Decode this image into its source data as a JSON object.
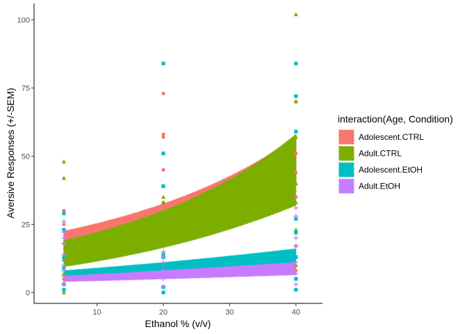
{
  "chart_data": {
    "type": "scatter",
    "xlabel": "Ethanol % (v/v)",
    "ylabel": "Aversive Responses (+/-SEM)",
    "xlim": [
      0.5,
      44
    ],
    "ylim": [
      -4,
      106
    ],
    "x_ticks": [
      10,
      20,
      30,
      40
    ],
    "y_ticks": [
      0,
      25,
      50,
      75,
      100
    ],
    "grid": false,
    "legend": {
      "title": "interaction(Age, Condition)",
      "position": "right",
      "entries": [
        "Adolescent.CTRL",
        "Adult.CTRL",
        "Adolescent.EtOH",
        "Adult.EtOH"
      ]
    },
    "series": [
      {
        "name": "Adolescent.CTRL",
        "color": "#F8766D",
        "marker": "circle",
        "band": [
          [
            5,
            15.5,
            22.5
          ],
          [
            20,
            24.5,
            32.5
          ],
          [
            40,
            40,
            57
          ]
        ],
        "points": [
          [
            5,
            30
          ],
          [
            5,
            29
          ],
          [
            5,
            25
          ],
          [
            5,
            18
          ],
          [
            5,
            12
          ],
          [
            5,
            5
          ],
          [
            5,
            1
          ],
          [
            20,
            73
          ],
          [
            20,
            58
          ],
          [
            20,
            57
          ],
          [
            20,
            45
          ],
          [
            20,
            33
          ],
          [
            20,
            14
          ],
          [
            20,
            2
          ],
          [
            40,
            70
          ],
          [
            40,
            51
          ],
          [
            40,
            44
          ],
          [
            40,
            35
          ],
          [
            40,
            22
          ],
          [
            40,
            17
          ],
          [
            40,
            8
          ],
          [
            40,
            1
          ]
        ]
      },
      {
        "name": "Adult.CTRL",
        "color": "#7CAE00",
        "marker": "triangle",
        "band": [
          [
            5,
            9.5,
            19
          ],
          [
            20,
            16.5,
            30
          ],
          [
            40,
            32,
            58
          ]
        ],
        "points": [
          [
            5,
            48
          ],
          [
            5,
            42
          ],
          [
            5,
            12
          ],
          [
            5,
            7
          ],
          [
            5,
            0
          ],
          [
            20,
            51
          ],
          [
            20,
            39
          ],
          [
            20,
            35
          ],
          [
            20,
            33
          ],
          [
            20,
            13
          ],
          [
            40,
            102
          ],
          [
            40,
            70
          ],
          [
            40,
            57
          ],
          [
            40,
            40
          ],
          [
            40,
            33
          ],
          [
            40,
            23
          ],
          [
            40,
            22
          ],
          [
            40,
            10
          ]
        ]
      },
      {
        "name": "Adolescent.EtOH",
        "color": "#00BFC4",
        "marker": "square",
        "band": [
          [
            5,
            6,
            8
          ],
          [
            20,
            7.5,
            11
          ],
          [
            40,
            10,
            16
          ]
        ],
        "points": [
          [
            5,
            29
          ],
          [
            5,
            23
          ],
          [
            5,
            13
          ],
          [
            5,
            9
          ],
          [
            5,
            3
          ],
          [
            5,
            1
          ],
          [
            20,
            84
          ],
          [
            20,
            51
          ],
          [
            20,
            39
          ],
          [
            20,
            14
          ],
          [
            20,
            13
          ],
          [
            20,
            2
          ],
          [
            20,
            0
          ],
          [
            40,
            84
          ],
          [
            40,
            72
          ],
          [
            40,
            59
          ],
          [
            40,
            27
          ],
          [
            40,
            22
          ],
          [
            40,
            13
          ],
          [
            40,
            5
          ],
          [
            40,
            1
          ]
        ]
      },
      {
        "name": "Adult.EtOH",
        "color": "#C77CFF",
        "marker": "plus",
        "band": [
          [
            5,
            4,
            6
          ],
          [
            20,
            5,
            8
          ],
          [
            40,
            6.5,
            11
          ]
        ],
        "points": [
          [
            5,
            26
          ],
          [
            5,
            22
          ],
          [
            5,
            20
          ],
          [
            5,
            18
          ],
          [
            5,
            14
          ],
          [
            5,
            10
          ],
          [
            5,
            8
          ],
          [
            5,
            6
          ],
          [
            5,
            3
          ],
          [
            20,
            15
          ],
          [
            20,
            13
          ],
          [
            20,
            11
          ],
          [
            20,
            8
          ],
          [
            20,
            5
          ],
          [
            20,
            2
          ],
          [
            40,
            31
          ],
          [
            40,
            28
          ],
          [
            40,
            20
          ],
          [
            40,
            17
          ],
          [
            40,
            11
          ],
          [
            40,
            7
          ],
          [
            40,
            3
          ]
        ]
      }
    ]
  }
}
